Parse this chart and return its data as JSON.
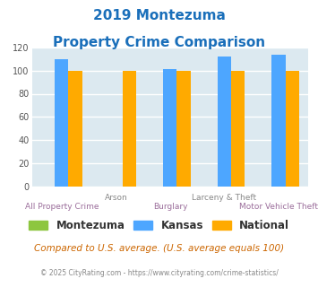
{
  "title_line1": "2019 Montezuma",
  "title_line2": "Property Crime Comparison",
  "categories": [
    "All Property Crime",
    "Arson",
    "Burglary",
    "Larceny & Theft",
    "Motor Vehicle Theft"
  ],
  "montezuma": [
    0,
    0,
    0,
    0,
    0
  ],
  "kansas": [
    110,
    0,
    101,
    112,
    114
  ],
  "national": [
    100,
    100,
    100,
    100,
    100
  ],
  "bar_colors": {
    "montezuma": "#8dc63f",
    "kansas": "#4da6ff",
    "national": "#ffaa00"
  },
  "ylim": [
    0,
    120
  ],
  "yticks": [
    0,
    20,
    40,
    60,
    80,
    100,
    120
  ],
  "background_color": "#dce9f0",
  "grid_color": "#ffffff",
  "title_color": "#1a6fba",
  "xlabel_color_top": "#888888",
  "xlabel_color_bot": "#9b6e9b",
  "legend_labels": [
    "Montezuma",
    "Kansas",
    "National"
  ],
  "footnote1": "Compared to U.S. average. (U.S. average equals 100)",
  "footnote2": "© 2025 CityRating.com - https://www.cityrating.com/crime-statistics/",
  "footnote1_color": "#cc6600",
  "footnote2_color": "#888888",
  "bar_width": 0.25
}
